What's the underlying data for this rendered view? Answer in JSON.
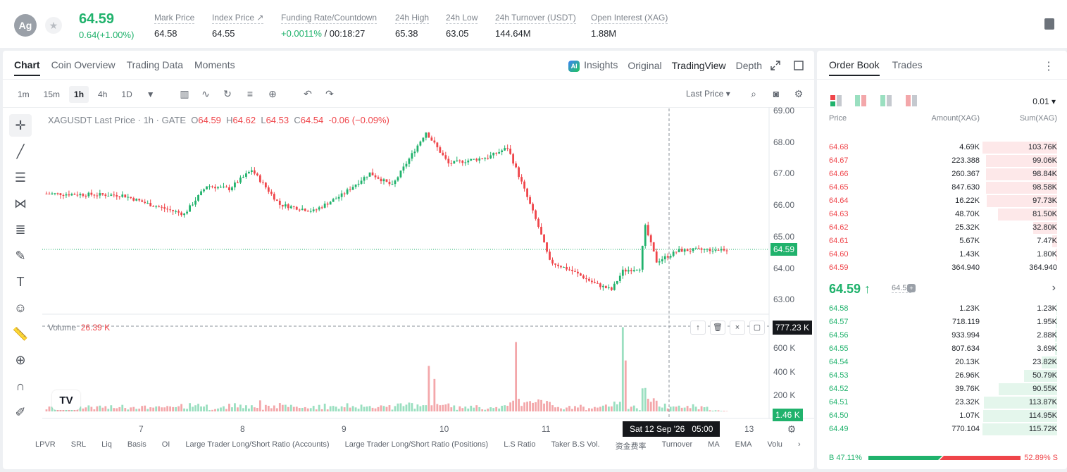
{
  "ticker": {
    "avatar": "Ag",
    "price": "64.59",
    "change": "0.64(+1.00%)",
    "stats": [
      {
        "label": "Mark Price",
        "value": "64.58"
      },
      {
        "label": "Index Price ↗",
        "value": "64.55"
      },
      {
        "label": "Funding Rate/Countdown",
        "value": "+0.0011%",
        "value2": "/ 00:18:27"
      },
      {
        "label": "24h High",
        "value": "65.38"
      },
      {
        "label": "24h Low",
        "value": "63.05"
      },
      {
        "label": "24h Turnover (USDT)",
        "value": "144.64M"
      },
      {
        "label": "Open Interest (XAG)",
        "value": "1.88M"
      }
    ]
  },
  "chart_tabs": [
    "Chart",
    "Coin Overview",
    "Trading Data",
    "Moments"
  ],
  "view_tabs": {
    "insights": "Insights",
    "original": "Original",
    "tradingview": "TradingView",
    "depth": "Depth"
  },
  "timeframes": [
    "1m",
    "15m",
    "1h",
    "4h",
    "1D"
  ],
  "last_price_select": "Last Price ▾",
  "legend": {
    "symbol": "XAGUSDT Last Price · 1h · GATE",
    "o_label": "O",
    "o": "64.59",
    "h_label": "H",
    "h": "64.62",
    "l_label": "L",
    "l": "64.53",
    "c_label": "C",
    "c": "64.54",
    "chg": "-0.06 (−0.09%)"
  },
  "volume_legend": {
    "label": "Volume",
    "value": "26.39 K"
  },
  "price_axis": [
    "69.00",
    "68.00",
    "67.00",
    "66.00",
    "65.00",
    "64.00",
    "63.00"
  ],
  "volume_axis": [
    "600 K",
    "400 K",
    "200 K"
  ],
  "time_axis": [
    "7",
    "8",
    "9",
    "10",
    "11",
    "13"
  ],
  "current_price_tag": "64.59",
  "volume_crosshair_tag": "777.23 K",
  "current_volume_tag": "1.46 K",
  "crosshair_date": "Sat 12 Sep '26",
  "crosshair_time": "05:00",
  "indicators": [
    "LPVR",
    "SRL",
    "Liq",
    "Basis",
    "OI",
    "Large Trader Long/Short Ratio (Accounts)",
    "Large Trader Long/Short Ratio (Positions)",
    "L.S Ratio",
    "Taker B.S Vol.",
    "资金费率",
    "Turnover",
    "MA",
    "EMA",
    "Volu"
  ],
  "colors": {
    "up": "#20b26c",
    "down": "#ef454a",
    "up_vol": "#9adfc0",
    "down_vol": "#f3a7aa"
  },
  "order_book": {
    "tabs": [
      "Order Book",
      "Trades"
    ],
    "precision": "0.01 ▾",
    "headers": {
      "price": "Price",
      "amount": "Amount(XAG)",
      "sum": "Sum(XAG)"
    },
    "asks": [
      {
        "price": "64.68",
        "amount": "4.69K",
        "sum": "103.76K",
        "depth": 1.0
      },
      {
        "price": "64.67",
        "amount": "223.388",
        "sum": "99.06K",
        "depth": 0.95
      },
      {
        "price": "64.66",
        "amount": "260.367",
        "sum": "98.84K",
        "depth": 0.95
      },
      {
        "price": "64.65",
        "amount": "847.630",
        "sum": "98.58K",
        "depth": 0.95
      },
      {
        "price": "64.64",
        "amount": "16.22K",
        "sum": "97.73K",
        "depth": 0.94
      },
      {
        "price": "64.63",
        "amount": "48.70K",
        "sum": "81.50K",
        "depth": 0.79
      },
      {
        "price": "64.62",
        "amount": "25.32K",
        "sum": "32.80K",
        "depth": 0.32
      },
      {
        "price": "64.61",
        "amount": "5.67K",
        "sum": "7.47K",
        "depth": 0.07
      },
      {
        "price": "64.60",
        "amount": "1.43K",
        "sum": "1.80K",
        "depth": 0.02
      },
      {
        "price": "64.59",
        "amount": "364.940",
        "sum": "364.940",
        "depth": 0.0
      }
    ],
    "last_price": "64.59 ↑",
    "mark_price": "64.58",
    "bids": [
      {
        "price": "64.58",
        "amount": "1.23K",
        "sum": "1.23K",
        "depth": 0.01
      },
      {
        "price": "64.57",
        "amount": "718.119",
        "sum": "1.95K",
        "depth": 0.02
      },
      {
        "price": "64.56",
        "amount": "933.994",
        "sum": "2.88K",
        "depth": 0.03
      },
      {
        "price": "64.55",
        "amount": "807.634",
        "sum": "3.69K",
        "depth": 0.03
      },
      {
        "price": "64.54",
        "amount": "20.13K",
        "sum": "23.82K",
        "depth": 0.21
      },
      {
        "price": "64.53",
        "amount": "26.96K",
        "sum": "50.79K",
        "depth": 0.44
      },
      {
        "price": "64.52",
        "amount": "39.76K",
        "sum": "90.55K",
        "depth": 0.78
      },
      {
        "price": "64.51",
        "amount": "23.32K",
        "sum": "113.87K",
        "depth": 0.98
      },
      {
        "price": "64.50",
        "amount": "1.07K",
        "sum": "114.95K",
        "depth": 0.99
      },
      {
        "price": "64.49",
        "amount": "770.104",
        "sum": "115.72K",
        "depth": 1.0
      }
    ],
    "buy_ratio": "B 47.11%",
    "sell_ratio": "52.89% S",
    "buy_fraction": 0.4711
  }
}
